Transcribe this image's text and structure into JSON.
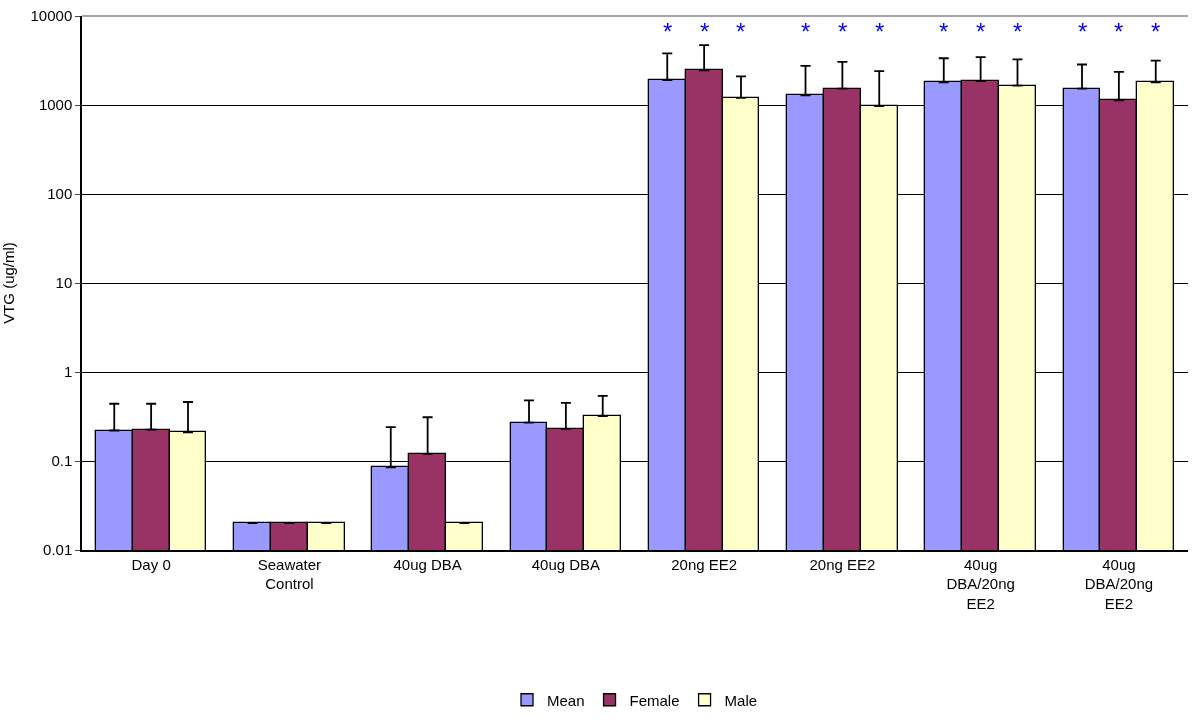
{
  "chart_data": {
    "type": "bar",
    "ylabel": "VTG (ug/ml)",
    "categories": [
      "Day 0",
      "Seawater\nControl",
      "40ug DBA",
      "40ug DBA",
      "20ng EE2",
      "20ng EE2",
      "40ug\nDBA/20ng\nEE2",
      "40ug\nDBA/20ng\nEE2"
    ],
    "series": [
      {
        "name": "Mean",
        "color": "#9999ff",
        "values": [
          0.22,
          0.02,
          0.085,
          0.27,
          1900,
          1280,
          1800,
          1530
        ],
        "errors": [
          [
            0.22,
            0.44
          ],
          null,
          [
            0.085,
            0.24
          ],
          [
            0.27,
            0.48
          ],
          [
            1900,
            3800
          ],
          [
            1280,
            2750
          ],
          [
            1800,
            3350
          ],
          [
            1530,
            2850
          ]
        ],
        "value_labels": [
          null,
          null,
          null,
          null,
          "*",
          "*",
          "*",
          "*"
        ]
      },
      {
        "name": "Female",
        "color": "#993366",
        "values": [
          0.225,
          0.02,
          0.12,
          0.23,
          2450,
          1530,
          1850,
          1130
        ],
        "errors": [
          [
            0.225,
            0.44
          ],
          null,
          [
            0.12,
            0.31
          ],
          [
            0.23,
            0.45
          ],
          [
            2450,
            4700
          ],
          [
            1530,
            3050
          ],
          [
            1850,
            3450
          ],
          [
            1130,
            2350
          ]
        ],
        "value_labels": [
          null,
          null,
          null,
          null,
          "*",
          "*",
          "*",
          "*"
        ]
      },
      {
        "name": "Male",
        "color": "#ffffcc",
        "values": [
          0.21,
          0.02,
          0.02,
          0.32,
          1200,
          970,
          1650,
          1800
        ],
        "errors": [
          [
            0.21,
            0.46
          ],
          null,
          null,
          [
            0.32,
            0.54
          ],
          [
            1200,
            2100
          ],
          [
            970,
            2400
          ],
          [
            1650,
            3250
          ],
          [
            1800,
            3150
          ]
        ],
        "value_labels": [
          null,
          null,
          null,
          null,
          "*",
          "*",
          "*",
          "*"
        ]
      }
    ],
    "log": "y",
    "ylim": [
      0.01,
      10000
    ],
    "yticks": [
      0.01,
      0.1,
      1,
      10,
      100,
      1000,
      10000
    ],
    "grid": "y",
    "legend": "bottom"
  }
}
